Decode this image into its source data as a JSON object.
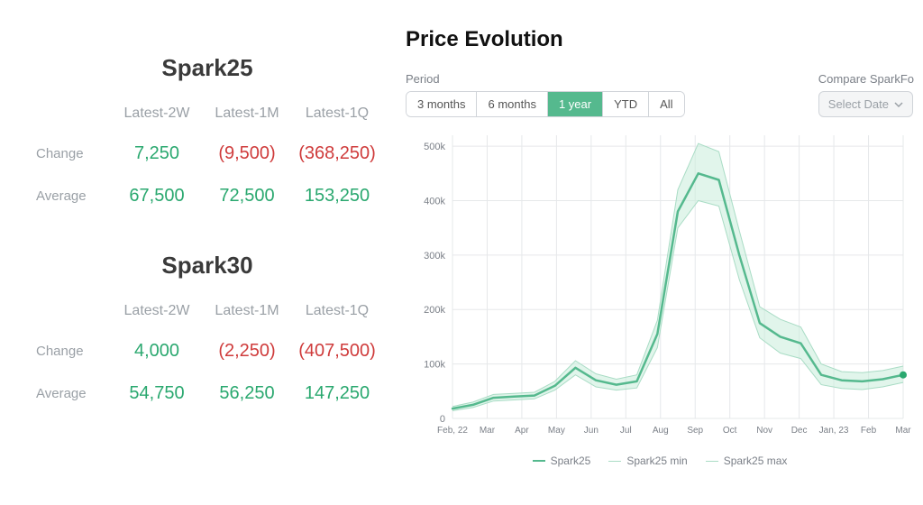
{
  "left": {
    "blocks": [
      {
        "title": "Spark25",
        "columns": [
          "Latest-2W",
          "Latest-1M",
          "Latest-1Q"
        ],
        "rows": [
          {
            "label": "Change",
            "cells": [
              {
                "text": "7,250",
                "color": "pos"
              },
              {
                "text": "(9,500)",
                "color": "neg"
              },
              {
                "text": "(368,250)",
                "color": "neg"
              }
            ]
          },
          {
            "label": "Average",
            "cells": [
              {
                "text": "67,500",
                "color": "pos"
              },
              {
                "text": "72,500",
                "color": "pos"
              },
              {
                "text": "153,250",
                "color": "pos"
              }
            ]
          }
        ]
      },
      {
        "title": "Spark30",
        "columns": [
          "Latest-2W",
          "Latest-1M",
          "Latest-1Q"
        ],
        "rows": [
          {
            "label": "Change",
            "cells": [
              {
                "text": "4,000",
                "color": "pos"
              },
              {
                "text": "(2,250)",
                "color": "neg"
              },
              {
                "text": "(407,500)",
                "color": "neg"
              }
            ]
          },
          {
            "label": "Average",
            "cells": [
              {
                "text": "54,750",
                "color": "pos"
              },
              {
                "text": "56,250",
                "color": "pos"
              },
              {
                "text": "147,250",
                "color": "pos"
              }
            ]
          }
        ]
      }
    ]
  },
  "chart": {
    "title": "Price Evolution",
    "period_label": "Period",
    "period_options": [
      "3 months",
      "6 months",
      "1 year",
      "YTD",
      "All"
    ],
    "period_active": "1 year",
    "compare_label": "Compare SparkFo",
    "compare_placeholder": "Select Date",
    "type": "line",
    "x_labels": [
      "Feb, 22",
      "Mar",
      "Apr",
      "May",
      "Jun",
      "Jul",
      "Aug",
      "Sep",
      "Oct",
      "Nov",
      "Dec",
      "Jan, 23",
      "Feb",
      "Mar"
    ],
    "y_ticks": [
      0,
      100,
      200,
      300,
      400,
      500
    ],
    "y_tick_suffix": "k",
    "ylim": [
      0,
      520
    ],
    "grid_color": "#e6e8ea",
    "background_color": "#ffffff",
    "series": {
      "main": {
        "name": "Spark25",
        "color": "#55b98e",
        "stroke_width": 2.5,
        "values": [
          18,
          25,
          38,
          40,
          42,
          60,
          93,
          70,
          62,
          68,
          155,
          380,
          450,
          438,
          300,
          175,
          150,
          138,
          80,
          70,
          68,
          72,
          80
        ]
      },
      "min": {
        "name": "Spark25 min",
        "color": "#a9dcc5",
        "stroke_width": 1,
        "values": [
          14,
          20,
          32,
          34,
          36,
          52,
          80,
          58,
          52,
          56,
          130,
          350,
          400,
          390,
          255,
          148,
          120,
          110,
          62,
          55,
          53,
          58,
          66
        ]
      },
      "max": {
        "name": "Spark25 max",
        "color": "#a9dcc5",
        "stroke_width": 1,
        "values": [
          22,
          30,
          44,
          46,
          48,
          68,
          106,
          82,
          72,
          80,
          180,
          420,
          505,
          490,
          345,
          205,
          182,
          168,
          100,
          86,
          84,
          88,
          96
        ]
      }
    },
    "fill_between_color": "#c9ecdb",
    "fill_between_opacity": 0.55,
    "legend": [
      {
        "label": "Spark25",
        "color": "#55b98e",
        "width": 2.5
      },
      {
        "label": "Spark25 min",
        "color": "#a9dcc5",
        "width": 1
      },
      {
        "label": "Spark25 max",
        "color": "#a9dcc5",
        "width": 1
      }
    ],
    "marker_last": {
      "color": "#2aa86f",
      "radius": 4
    }
  },
  "colors": {
    "positive": "#2aa86f",
    "negative": "#cf3b3b",
    "muted": "#9aa0a6"
  }
}
